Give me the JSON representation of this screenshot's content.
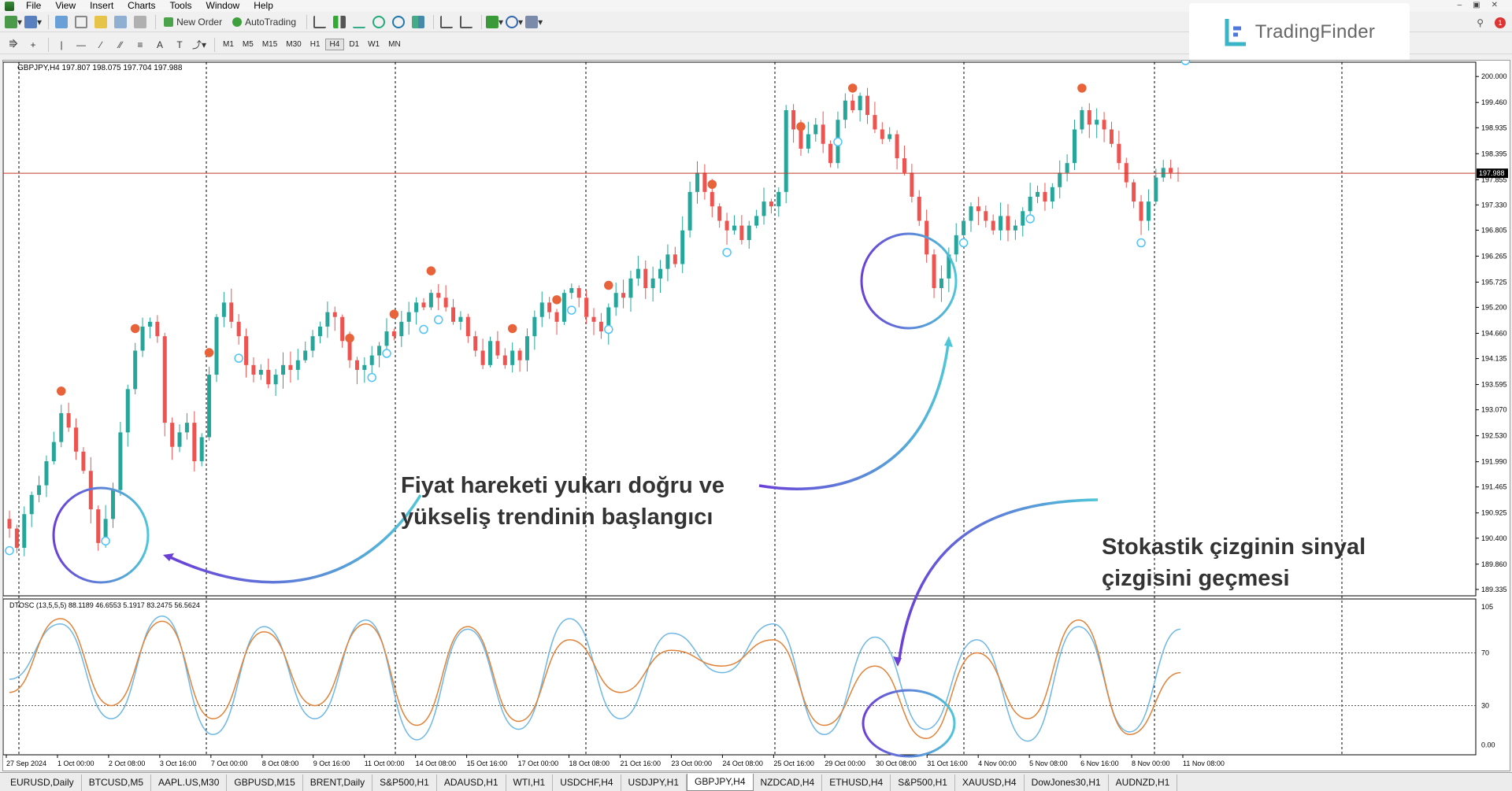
{
  "menu": {
    "items": [
      "File",
      "View",
      "Insert",
      "Charts",
      "Tools",
      "Window",
      "Help"
    ]
  },
  "toolbar": {
    "new_order_label": "New Order",
    "autotrading_label": "AutoTrading",
    "timeframes": [
      "M1",
      "M5",
      "M15",
      "M30",
      "H1",
      "H4",
      "D1",
      "W1",
      "MN"
    ],
    "active_timeframe": "H4"
  },
  "logo": {
    "text": "TradingFinder"
  },
  "chart": {
    "symbol_header": "GBPJPY,H4  197.807 198.075 197.704 197.988",
    "current_price": "197.988",
    "indicator_header": "DTOSC (13,5,5,5) 88.1189 46.6553 5.1917 83.2475 56.5624",
    "price_ticks": [
      "200.000",
      "199.460",
      "198.935",
      "198.395",
      "197.855",
      "197.330",
      "196.805",
      "196.265",
      "195.725",
      "195.200",
      "194.660",
      "194.135",
      "193.595",
      "193.070",
      "192.530",
      "191.990",
      "191.465",
      "190.925",
      "190.400",
      "189.860",
      "189.335"
    ],
    "osc_ticks": [
      "105",
      "70",
      "30",
      "0.00"
    ],
    "time_labels": [
      "27 Sep 2024",
      "1 Oct 00:00",
      "2 Oct 08:00",
      "3 Oct 16:00",
      "7 Oct 00:00",
      "8 Oct 08:00",
      "9 Oct 16:00",
      "11 Oct 00:00",
      "14 Oct 08:00",
      "15 Oct 16:00",
      "17 Oct 00:00",
      "18 Oct 08:00",
      "21 Oct 16:00",
      "23 Oct 00:00",
      "24 Oct 08:00",
      "25 Oct 16:00",
      "29 Oct 00:00",
      "30 Oct 08:00",
      "31 Oct 16:00",
      "4 Nov 00:00",
      "5 Nov 08:00",
      "6 Nov 16:00",
      "8 Nov 00:00",
      "11 Nov 08:00"
    ],
    "annotations": {
      "price_note_line1": "Fiyat hareketi yukarı doğru ve",
      "price_note_line2": "yükseliş trendinin başlangıcı",
      "osc_note_line1": "Stokastik çizginin sinyal",
      "osc_note_line2": "çizgisini geçmesi"
    },
    "colors": {
      "bull": "#26a69a",
      "bear": "#ef5350",
      "signal_up": "#4fc3f7",
      "signal_down": "#e8623a",
      "osc_main": "#6fb7e4",
      "osc_signal": "#e0833a",
      "price_line": "#c0392b"
    }
  },
  "chart_data": {
    "type": "candlestick",
    "symbol": "GBPJPY",
    "timeframe": "H4",
    "y_range": [
      189.3,
      200.2
    ],
    "current": 197.988,
    "closes": [
      190.6,
      190.2,
      190.9,
      191.3,
      191.5,
      192.0,
      192.4,
      193.0,
      192.7,
      192.2,
      191.8,
      191.0,
      190.3,
      190.8,
      191.4,
      192.6,
      193.5,
      194.3,
      194.8,
      194.9,
      194.6,
      192.8,
      192.3,
      192.6,
      192.8,
      192.0,
      192.5,
      193.8,
      195.0,
      195.3,
      194.9,
      194.6,
      194.0,
      193.8,
      193.9,
      193.6,
      193.8,
      194.0,
      193.9,
      194.1,
      194.3,
      194.6,
      194.8,
      195.1,
      195.0,
      194.5,
      194.1,
      193.9,
      194.0,
      194.2,
      194.4,
      194.7,
      194.6,
      194.9,
      195.1,
      195.3,
      195.2,
      195.5,
      195.4,
      195.2,
      194.9,
      195.0,
      194.6,
      194.3,
      194.0,
      194.5,
      194.2,
      194.0,
      194.3,
      194.1,
      194.6,
      195.0,
      195.3,
      195.1,
      194.9,
      195.5,
      195.6,
      195.4,
      195.0,
      194.9,
      194.7,
      195.2,
      195.5,
      195.4,
      195.8,
      196.0,
      195.6,
      195.8,
      196.0,
      196.3,
      196.1,
      196.8,
      197.6,
      198.0,
      197.6,
      197.3,
      197.0,
      196.8,
      196.9,
      196.6,
      196.9,
      197.1,
      197.4,
      197.3,
      197.6,
      199.3,
      198.9,
      198.5,
      198.8,
      199.0,
      198.6,
      198.2,
      199.1,
      199.5,
      199.3,
      199.6,
      199.2,
      198.9,
      198.7,
      198.8,
      198.3,
      198.0,
      197.5,
      197.0,
      196.3,
      195.6,
      195.8,
      196.3,
      196.7,
      197.0,
      197.3,
      197.2,
      197.0,
      196.8,
      197.1,
      196.8,
      196.9,
      197.2,
      197.5,
      197.6,
      197.4,
      197.7,
      198.0,
      198.2,
      198.9,
      199.3,
      199.0,
      199.1,
      198.9,
      198.6,
      198.2,
      197.8,
      197.4,
      197.0,
      197.4,
      197.9,
      198.1,
      198.0,
      197.99
    ],
    "osc_main_sample": [
      50,
      92,
      20,
      98,
      8,
      90,
      20,
      95,
      4,
      88,
      12,
      96,
      20,
      85,
      55,
      92,
      8,
      82,
      12,
      80,
      3,
      90,
      10,
      88
    ],
    "osc_signal_sample": [
      40,
      96,
      30,
      94,
      20,
      86,
      30,
      92,
      15,
      90,
      18,
      80,
      40,
      72,
      60,
      80,
      15,
      60,
      5,
      70,
      20,
      95,
      8,
      55
    ]
  },
  "tabs": {
    "items": [
      "EURUSD,Daily",
      "BTCUSD,M5",
      "AAPL.US,M30",
      "GBPUSD,M15",
      "BRENT,Daily",
      "S&P500,H1",
      "ADAUSD,H1",
      "WTI,H1",
      "USDCHF,H4",
      "USDJPY,H1",
      "GBPJPY,H4",
      "NZDCAD,H4",
      "ETHUSD,H4",
      "S&P500,H1",
      "XAUUSD,H4",
      "DowJones30,H1",
      "AUDNZD,H1"
    ],
    "active_index": 10
  }
}
